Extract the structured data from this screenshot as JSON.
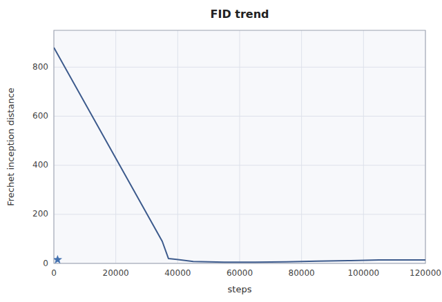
{
  "chart_data": {
    "type": "line",
    "title": "FID trend",
    "xlabel": "steps",
    "ylabel": "Frechet inception distance",
    "x": [
      0,
      35000,
      37000,
      45000,
      55000,
      65000,
      75000,
      85000,
      95000,
      105000,
      115000,
      120000
    ],
    "series": [
      {
        "type": "line",
        "color": "#3c5a8c",
        "values": [
          880,
          90,
          20,
          8,
          5,
          5,
          6,
          9,
          11,
          14,
          14,
          14
        ]
      },
      {
        "type": "scatter",
        "marker": "star",
        "color": "#4472b0",
        "x": [
          1200
        ],
        "values": [
          15
        ]
      }
    ],
    "xlim": [
      0,
      120000
    ],
    "ylim": [
      0,
      950
    ],
    "xticks": [
      0,
      20000,
      40000,
      60000,
      80000,
      100000,
      120000
    ],
    "yticks": [
      0,
      200,
      400,
      600,
      800
    ],
    "grid": true
  }
}
